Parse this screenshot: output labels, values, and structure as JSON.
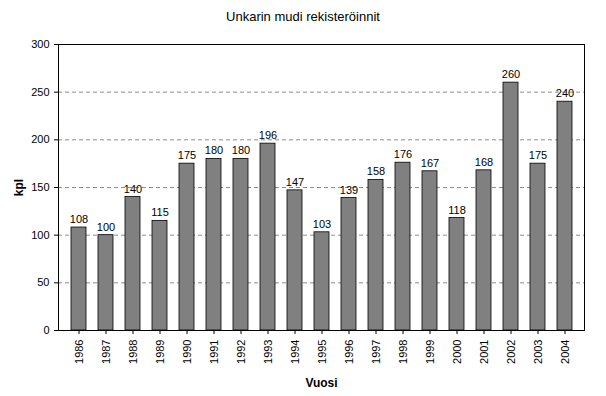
{
  "chart_data": {
    "type": "bar",
    "title": "Unkarin mudi rekisteröinnit",
    "x_label": "Vuosi",
    "y_label": "kpl",
    "categories": [
      "1986",
      "1987",
      "1988",
      "1989",
      "1990",
      "1991",
      "1992",
      "1993",
      "1994",
      "1995",
      "1996",
      "1997",
      "1998",
      "1999",
      "2000",
      "2001",
      "2002",
      "2003",
      "2004"
    ],
    "values": [
      108,
      100,
      140,
      115,
      175,
      180,
      180,
      196,
      147,
      103,
      139,
      158,
      176,
      167,
      118,
      168,
      260,
      175,
      240
    ],
    "color": "#808080",
    "ylim": [
      0,
      300
    ],
    "yticks": [
      0,
      50,
      100,
      150,
      200,
      250,
      300
    ],
    "grid": true,
    "data_labels": true
  }
}
